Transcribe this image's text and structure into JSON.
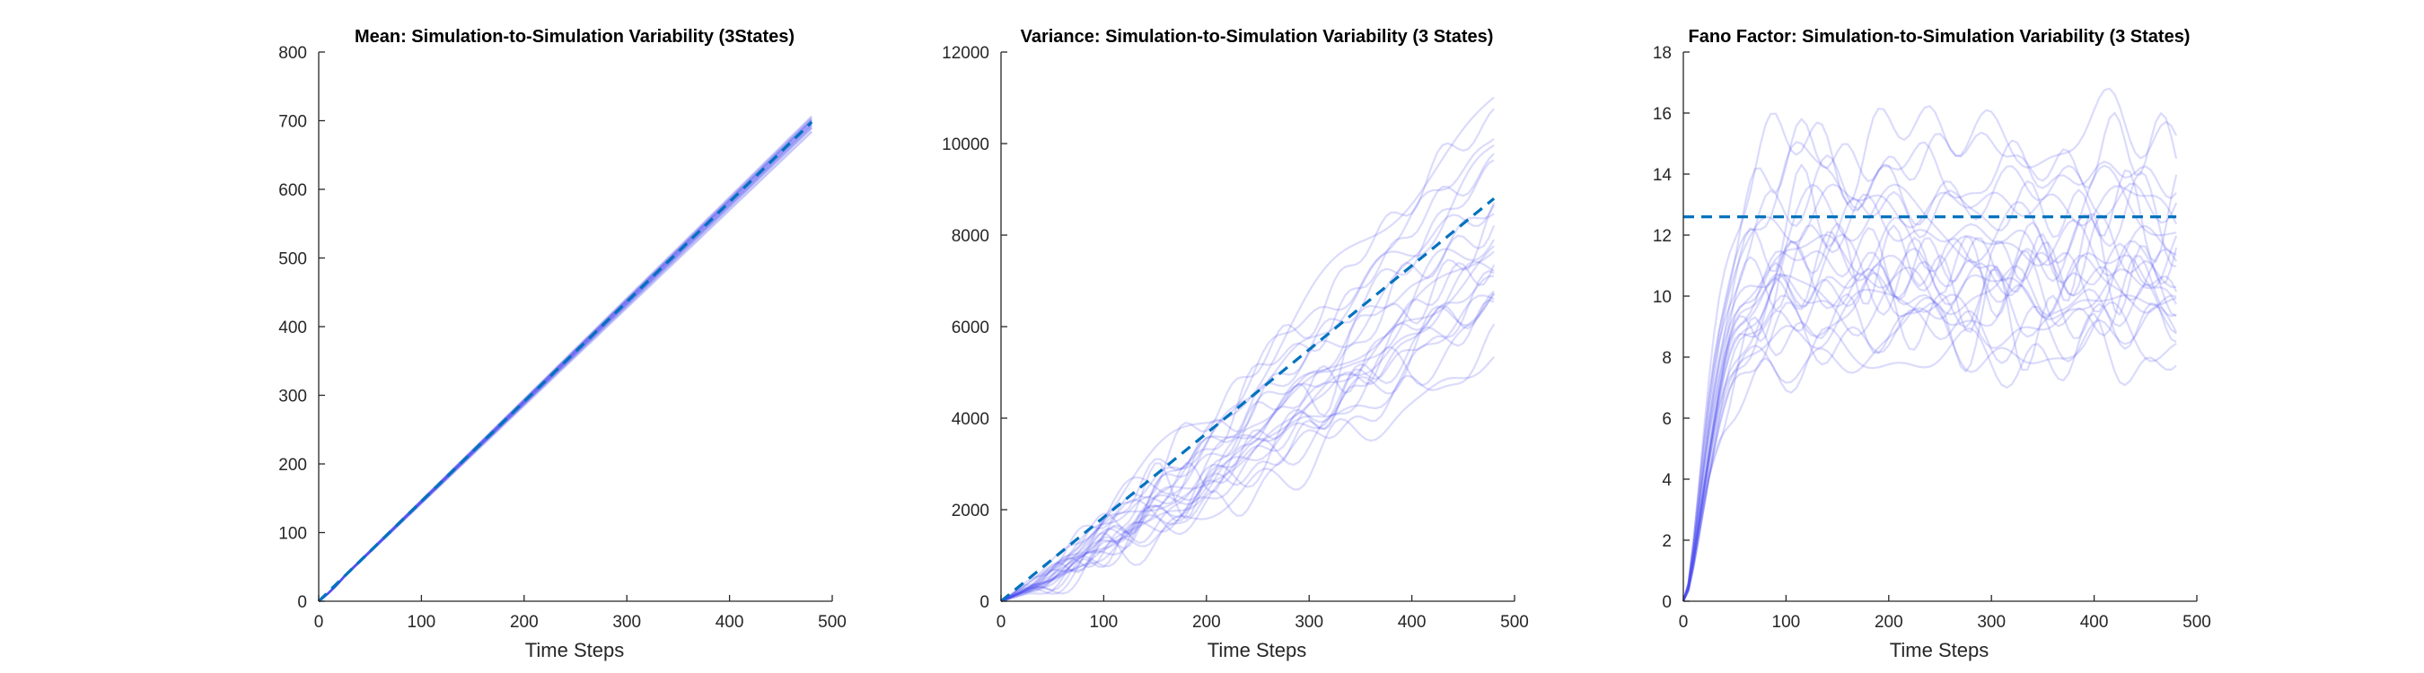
{
  "chart_data": [
    {
      "type": "line",
      "title": "Mean: Simulation-to-Simulation Variability (3States)",
      "xlabel": "Time Steps",
      "ylabel": "",
      "xlim": [
        0,
        500
      ],
      "ylim": [
        0,
        800
      ],
      "xticks": [
        0,
        100,
        200,
        300,
        400,
        500
      ],
      "yticks": [
        0,
        100,
        200,
        300,
        400,
        500,
        600,
        700,
        800
      ],
      "grid": false,
      "series_color": "#4a4af0",
      "reference_color": "#0072bd",
      "sim_end_x": 480,
      "simulations": [
        {
          "slope": 1.454,
          "noise": 0.5,
          "end": 698
        },
        {
          "slope": 1.44,
          "noise": 0.5,
          "end": 691
        },
        {
          "slope": 1.47,
          "noise": 0.5,
          "end": 706
        },
        {
          "slope": 1.425,
          "noise": 0.5,
          "end": 684
        },
        {
          "slope": 1.46,
          "noise": 0.5,
          "end": 701
        },
        {
          "slope": 1.448,
          "noise": 0.5,
          "end": 695
        },
        {
          "slope": 1.465,
          "noise": 0.5,
          "end": 703
        },
        {
          "slope": 1.435,
          "noise": 0.5,
          "end": 689
        },
        {
          "slope": 1.458,
          "noise": 0.5,
          "end": 700
        },
        {
          "slope": 1.445,
          "noise": 0.5,
          "end": 694
        }
      ],
      "reference": {
        "style": "dashed",
        "points": [
          [
            0,
            0
          ],
          [
            480,
            698
          ]
        ]
      }
    },
    {
      "type": "line",
      "title": "Variance: Simulation-to-Simulation Variability (3 States)",
      "xlabel": "Time Steps",
      "ylabel": "",
      "xlim": [
        0,
        500
      ],
      "ylim": [
        0,
        12000
      ],
      "xticks": [
        0,
        100,
        200,
        300,
        400,
        500
      ],
      "yticks": [
        0,
        2000,
        4000,
        6000,
        8000,
        10000,
        12000
      ],
      "grid": false,
      "series_color": "#4a4af0",
      "reference_color": "#0072bd",
      "sim_end_x": 480,
      "simulation_end_values": [
        11000,
        10800,
        10300,
        9900,
        9400,
        9000,
        8600,
        8400,
        8100,
        7900,
        7700,
        7500,
        7300,
        7100,
        7000,
        6800,
        6700,
        6500,
        6400,
        5700,
        5300,
        6600,
        8000,
        9700
      ],
      "simulation_noise": 450,
      "reference": {
        "style": "dashed",
        "points": [
          [
            0,
            0
          ],
          [
            480,
            8800
          ]
        ]
      }
    },
    {
      "type": "line",
      "title": "Fano Factor: Simulation-to-Simulation Variability (3 States)",
      "xlabel": "Time Steps",
      "ylabel": "",
      "xlim": [
        0,
        500
      ],
      "ylim": [
        0,
        18
      ],
      "xticks": [
        0,
        100,
        200,
        300,
        400,
        500
      ],
      "yticks": [
        0,
        2,
        4,
        6,
        8,
        10,
        12,
        14,
        16,
        18
      ],
      "grid": false,
      "series_color": "#4a4af0",
      "reference_color": "#0072bd",
      "sim_end_x": 480,
      "simulation_levels": [
        15.2,
        14.6,
        14.0,
        13.4,
        13.0,
        12.4,
        12.0,
        11.6,
        11.2,
        10.9,
        10.6,
        10.4,
        10.2,
        10.0,
        9.8,
        9.6,
        9.4,
        9.1,
        8.8,
        8.4,
        8.0,
        11.0,
        12.8,
        10.8
      ],
      "simulation_noise": 1.1,
      "reference": {
        "style": "dashed",
        "points": [
          [
            0,
            12.6
          ],
          [
            480,
            12.6
          ]
        ]
      }
    }
  ]
}
